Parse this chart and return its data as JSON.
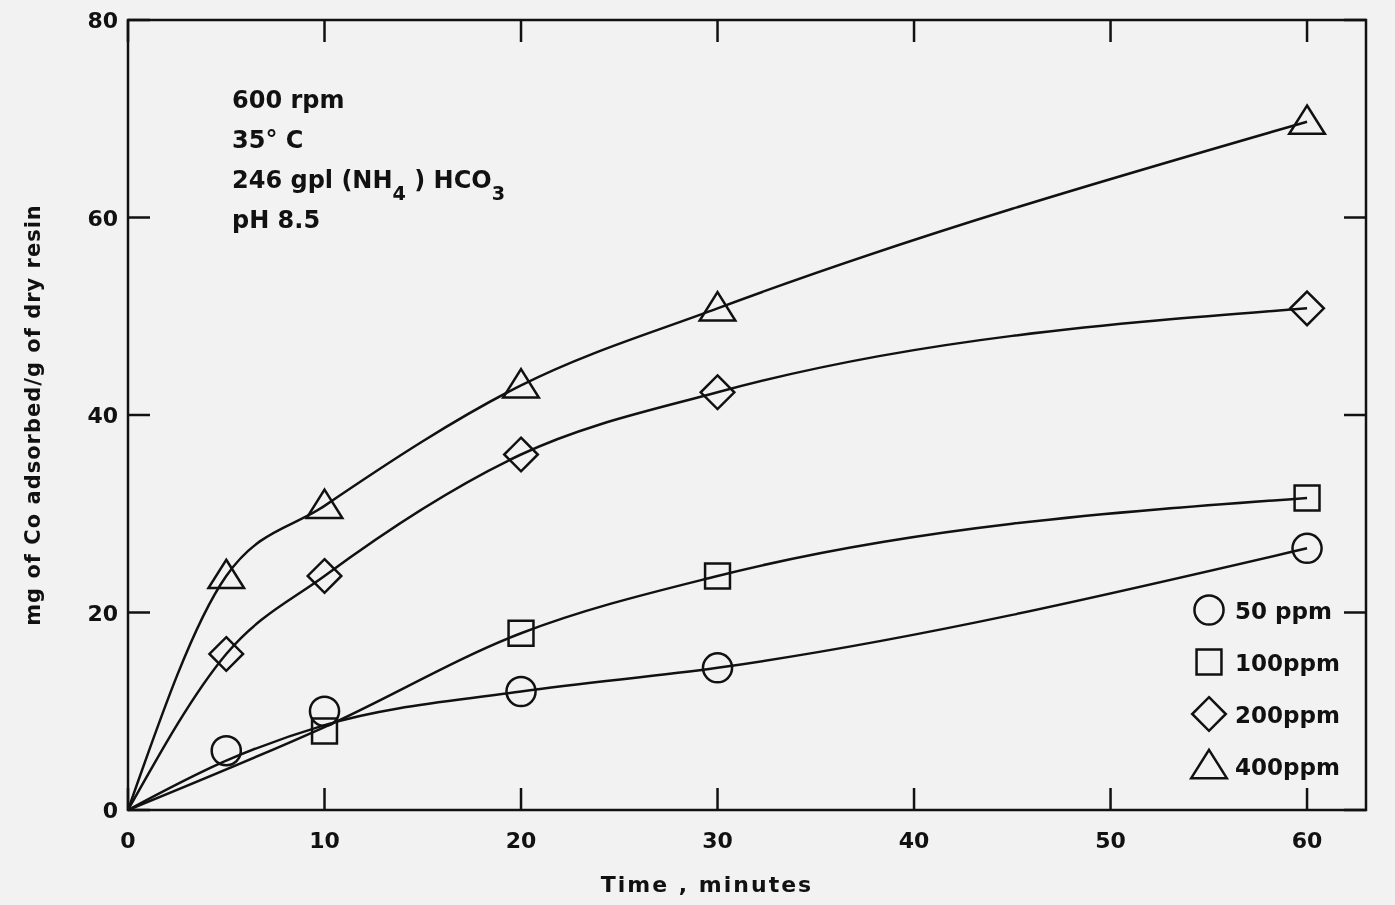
{
  "chart_data": {
    "type": "scatter",
    "xlabel": "Time , minutes",
    "ylabel": "mg of Co adsorbed/g of dry resin",
    "xlim": [
      0,
      63
    ],
    "ylim": [
      0,
      80
    ],
    "xticks": [
      0,
      10,
      20,
      30,
      40,
      50,
      60
    ],
    "yticks": [
      0,
      20,
      40,
      60,
      80
    ],
    "annotations": [
      "600 rpm",
      "35° C",
      "246 gpl  (NH$_{4}$ ) HCO$_{3}$",
      "pH 8.5"
    ],
    "legend": "bottom right",
    "series": [
      {
        "name": "50 ppm",
        "marker": "circle",
        "color": "#111111",
        "x": [
          5,
          10,
          20,
          30,
          60
        ],
        "values": [
          6,
          10,
          12,
          14.4,
          26.5
        ]
      },
      {
        "name": "100ppm",
        "marker": "square",
        "color": "#111111",
        "x": [
          10,
          20,
          30,
          60
        ],
        "values": [
          8,
          17.9,
          23.7,
          31.6
        ]
      },
      {
        "name": "200ppm",
        "marker": "diamond",
        "color": "#111111",
        "x": [
          5,
          10,
          20,
          30,
          60
        ],
        "values": [
          15.8,
          23.7,
          36,
          42.3,
          50.8
        ]
      },
      {
        "name": "400ppm",
        "marker": "triangle",
        "color": "#111111",
        "x": [
          5,
          10,
          20,
          30,
          60
        ],
        "values": [
          23.7,
          30.8,
          43,
          50.8,
          69.7
        ]
      },
      {
        "type": "line",
        "marker": "none",
        "color": "#111111",
        "x": [
          0,
          5,
          10,
          20,
          30,
          60
        ],
        "values": [
          0,
          5,
          8.6,
          12,
          14.4,
          26.5
        ]
      },
      {
        "type": "line",
        "marker": "none",
        "color": "#111111",
        "x": [
          0,
          10,
          20,
          30,
          60
        ],
        "values": [
          0,
          8.4,
          17.9,
          23.7,
          31.6
        ]
      },
      {
        "type": "line",
        "marker": "none",
        "color": "#111111",
        "x": [
          0,
          5,
          10,
          20,
          30,
          60
        ],
        "values": [
          0,
          15.8,
          23.7,
          36,
          42.3,
          50.8
        ]
      },
      {
        "type": "line",
        "marker": "none",
        "color": "#111111",
        "x": [
          0,
          5,
          10,
          20,
          30,
          60
        ],
        "values": [
          0,
          23.7,
          30.8,
          43,
          50.8,
          69.7
        ]
      }
    ]
  }
}
